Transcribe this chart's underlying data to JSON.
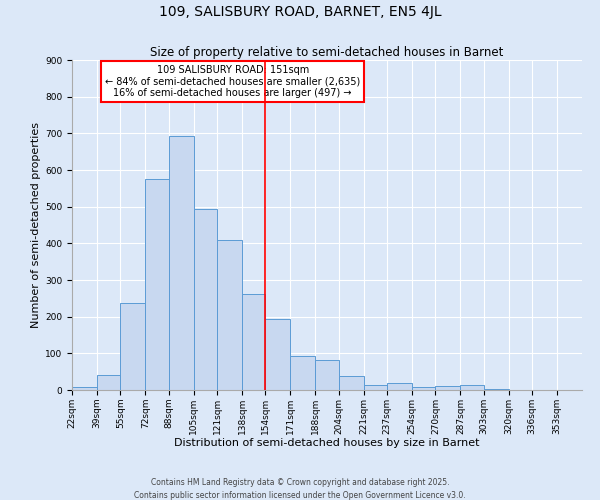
{
  "title": "109, SALISBURY ROAD, BARNET, EN5 4JL",
  "subtitle": "Size of property relative to semi-detached houses in Barnet",
  "xlabel": "Distribution of semi-detached houses by size in Barnet",
  "ylabel": "Number of semi-detached properties",
  "bin_labels": [
    "22sqm",
    "39sqm",
    "55sqm",
    "72sqm",
    "88sqm",
    "105sqm",
    "121sqm",
    "138sqm",
    "154sqm",
    "171sqm",
    "188sqm",
    "204sqm",
    "221sqm",
    "237sqm",
    "254sqm",
    "270sqm",
    "287sqm",
    "303sqm",
    "320sqm",
    "336sqm",
    "353sqm"
  ],
  "bin_edges": [
    22,
    39,
    55,
    72,
    88,
    105,
    121,
    138,
    154,
    171,
    188,
    204,
    221,
    237,
    254,
    270,
    287,
    303,
    320,
    336,
    353
  ],
  "bar_heights": [
    8,
    42,
    238,
    575,
    693,
    493,
    410,
    263,
    195,
    92,
    82,
    38,
    13,
    20,
    7,
    12,
    14,
    2,
    0,
    0,
    0
  ],
  "bar_color": "#c8d8f0",
  "bar_edge_color": "#5b9bd5",
  "vline_x": 154,
  "vline_color": "red",
  "annotation_title": "109 SALISBURY ROAD: 151sqm",
  "annotation_line1": "← 84% of semi-detached houses are smaller (2,635)",
  "annotation_line2": "16% of semi-detached houses are larger (497) →",
  "annotation_box_color": "#ffffff",
  "annotation_border_color": "red",
  "ylim": [
    0,
    900
  ],
  "yticks": [
    0,
    100,
    200,
    300,
    400,
    500,
    600,
    700,
    800,
    900
  ],
  "bg_color": "#dce8f8",
  "grid_color": "#ffffff",
  "footer1": "Contains HM Land Registry data © Crown copyright and database right 2025.",
  "footer2": "Contains public sector information licensed under the Open Government Licence v3.0.",
  "title_fontsize": 10,
  "subtitle_fontsize": 8.5,
  "axis_label_fontsize": 8,
  "tick_fontsize": 6.5,
  "footer_fontsize": 5.5
}
